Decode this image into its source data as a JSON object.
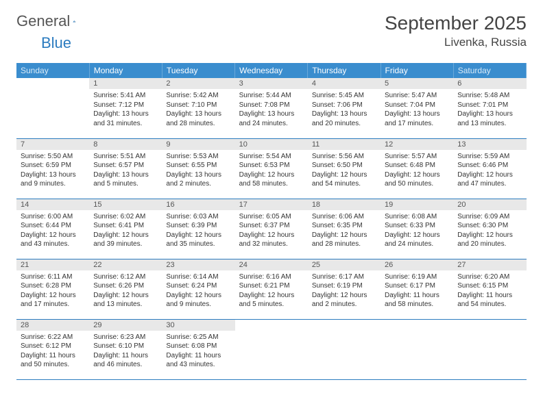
{
  "brand": {
    "word1": "General",
    "word2": "Blue"
  },
  "title": "September 2025",
  "location": "Livenka, Russia",
  "colors": {
    "header_bg": "#3a8dce",
    "header_text": "#ffffff",
    "row_border": "#2b7bbf",
    "daynum_bg": "#e8e8e8",
    "brand_blue": "#2b7bbf"
  },
  "weekdays": [
    "Sunday",
    "Monday",
    "Tuesday",
    "Wednesday",
    "Thursday",
    "Friday",
    "Saturday"
  ],
  "weeks": [
    [
      {
        "n": "",
        "sr": "",
        "ss": "",
        "dl": ""
      },
      {
        "n": "1",
        "sr": "5:41 AM",
        "ss": "7:12 PM",
        "dl": "13 hours and 31 minutes."
      },
      {
        "n": "2",
        "sr": "5:42 AM",
        "ss": "7:10 PM",
        "dl": "13 hours and 28 minutes."
      },
      {
        "n": "3",
        "sr": "5:44 AM",
        "ss": "7:08 PM",
        "dl": "13 hours and 24 minutes."
      },
      {
        "n": "4",
        "sr": "5:45 AM",
        "ss": "7:06 PM",
        "dl": "13 hours and 20 minutes."
      },
      {
        "n": "5",
        "sr": "5:47 AM",
        "ss": "7:04 PM",
        "dl": "13 hours and 17 minutes."
      },
      {
        "n": "6",
        "sr": "5:48 AM",
        "ss": "7:01 PM",
        "dl": "13 hours and 13 minutes."
      }
    ],
    [
      {
        "n": "7",
        "sr": "5:50 AM",
        "ss": "6:59 PM",
        "dl": "13 hours and 9 minutes."
      },
      {
        "n": "8",
        "sr": "5:51 AM",
        "ss": "6:57 PM",
        "dl": "13 hours and 5 minutes."
      },
      {
        "n": "9",
        "sr": "5:53 AM",
        "ss": "6:55 PM",
        "dl": "13 hours and 2 minutes."
      },
      {
        "n": "10",
        "sr": "5:54 AM",
        "ss": "6:53 PM",
        "dl": "12 hours and 58 minutes."
      },
      {
        "n": "11",
        "sr": "5:56 AM",
        "ss": "6:50 PM",
        "dl": "12 hours and 54 minutes."
      },
      {
        "n": "12",
        "sr": "5:57 AM",
        "ss": "6:48 PM",
        "dl": "12 hours and 50 minutes."
      },
      {
        "n": "13",
        "sr": "5:59 AM",
        "ss": "6:46 PM",
        "dl": "12 hours and 47 minutes."
      }
    ],
    [
      {
        "n": "14",
        "sr": "6:00 AM",
        "ss": "6:44 PM",
        "dl": "12 hours and 43 minutes."
      },
      {
        "n": "15",
        "sr": "6:02 AM",
        "ss": "6:41 PM",
        "dl": "12 hours and 39 minutes."
      },
      {
        "n": "16",
        "sr": "6:03 AM",
        "ss": "6:39 PM",
        "dl": "12 hours and 35 minutes."
      },
      {
        "n": "17",
        "sr": "6:05 AM",
        "ss": "6:37 PM",
        "dl": "12 hours and 32 minutes."
      },
      {
        "n": "18",
        "sr": "6:06 AM",
        "ss": "6:35 PM",
        "dl": "12 hours and 28 minutes."
      },
      {
        "n": "19",
        "sr": "6:08 AM",
        "ss": "6:33 PM",
        "dl": "12 hours and 24 minutes."
      },
      {
        "n": "20",
        "sr": "6:09 AM",
        "ss": "6:30 PM",
        "dl": "12 hours and 20 minutes."
      }
    ],
    [
      {
        "n": "21",
        "sr": "6:11 AM",
        "ss": "6:28 PM",
        "dl": "12 hours and 17 minutes."
      },
      {
        "n": "22",
        "sr": "6:12 AM",
        "ss": "6:26 PM",
        "dl": "12 hours and 13 minutes."
      },
      {
        "n": "23",
        "sr": "6:14 AM",
        "ss": "6:24 PM",
        "dl": "12 hours and 9 minutes."
      },
      {
        "n": "24",
        "sr": "6:16 AM",
        "ss": "6:21 PM",
        "dl": "12 hours and 5 minutes."
      },
      {
        "n": "25",
        "sr": "6:17 AM",
        "ss": "6:19 PM",
        "dl": "12 hours and 2 minutes."
      },
      {
        "n": "26",
        "sr": "6:19 AM",
        "ss": "6:17 PM",
        "dl": "11 hours and 58 minutes."
      },
      {
        "n": "27",
        "sr": "6:20 AM",
        "ss": "6:15 PM",
        "dl": "11 hours and 54 minutes."
      }
    ],
    [
      {
        "n": "28",
        "sr": "6:22 AM",
        "ss": "6:12 PM",
        "dl": "11 hours and 50 minutes."
      },
      {
        "n": "29",
        "sr": "6:23 AM",
        "ss": "6:10 PM",
        "dl": "11 hours and 46 minutes."
      },
      {
        "n": "30",
        "sr": "6:25 AM",
        "ss": "6:08 PM",
        "dl": "11 hours and 43 minutes."
      },
      {
        "n": "",
        "sr": "",
        "ss": "",
        "dl": ""
      },
      {
        "n": "",
        "sr": "",
        "ss": "",
        "dl": ""
      },
      {
        "n": "",
        "sr": "",
        "ss": "",
        "dl": ""
      },
      {
        "n": "",
        "sr": "",
        "ss": "",
        "dl": ""
      }
    ]
  ],
  "labels": {
    "sunrise": "Sunrise:",
    "sunset": "Sunset:",
    "daylight": "Daylight:"
  }
}
